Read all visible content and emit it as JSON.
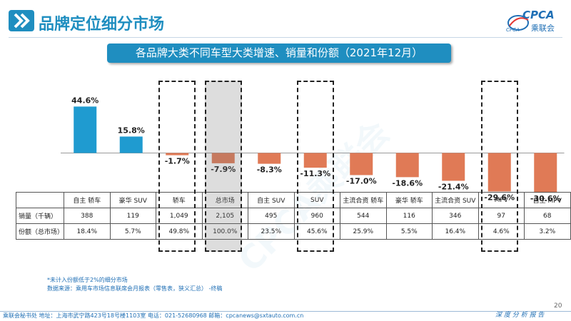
{
  "header": {
    "title": "品牌定位细分市场",
    "logo_text": "CPCA",
    "logo_cn": "乘联会",
    "logo_sub": "CPCA"
  },
  "banner": {
    "title": "各品牌大类不同车型大类增速、销量和份额（2021年12月）"
  },
  "chart_data": {
    "type": "bar",
    "categories": [
      "自主 轿车",
      "豪华 SUV",
      "轿车",
      "总市场",
      "自主 SUV",
      "SUV",
      "主流合资 轿车",
      "豪华 轿车",
      "主流合资 SUV",
      "MPV",
      "自主 MPV"
    ],
    "values": [
      44.6,
      15.8,
      -1.7,
      -7.9,
      -8.3,
      -11.3,
      -17.0,
      -18.6,
      -21.4,
      -29.6,
      -30.6
    ],
    "data_labels": [
      "44.6%",
      "15.8%",
      "-1.7%",
      "-7.9%",
      "-8.3%",
      "-11.3%",
      "-17.0%",
      "-18.6%",
      "-21.4%",
      "-29.6%",
      "-30.6%"
    ],
    "unit": "%",
    "ylim": [
      -35,
      50
    ],
    "grid": false,
    "colors": {
      "positive": "#1f9bd0",
      "negative": "#e07a56",
      "axis": "#9a9a9a"
    },
    "highlighted": [
      2,
      3,
      5,
      9
    ],
    "shaded": [
      3
    ]
  },
  "table": {
    "rows": [
      {
        "label": "销量（千辆）",
        "values": [
          "388",
          "119",
          "1,049",
          "2,105",
          "495",
          "960",
          "544",
          "116",
          "346",
          "97",
          "68"
        ]
      },
      {
        "label": "份额（总市场）",
        "values": [
          "18.4%",
          "5.7%",
          "49.8%",
          "100.0%",
          "23.5%",
          "45.6%",
          "25.9%",
          "5.5%",
          "16.4%",
          "4.6%",
          "3.2%"
        ]
      }
    ]
  },
  "footnote": {
    "line1": "*未计入份额低于2%的细分市场",
    "line2": "数据来源：乘用车市场信息联席会月报表（零售表，狭义汇总）  -终稿"
  },
  "page_number": "20",
  "footer": {
    "text": "乘联会秘书处   地址：上海市武宁路423号18号楼1103室   电话：021-52680968   邮箱：cpcanews@sxtauto.com.cn",
    "tag": "深 度 分 析 报 告"
  },
  "watermark": "CPCA乘联会"
}
